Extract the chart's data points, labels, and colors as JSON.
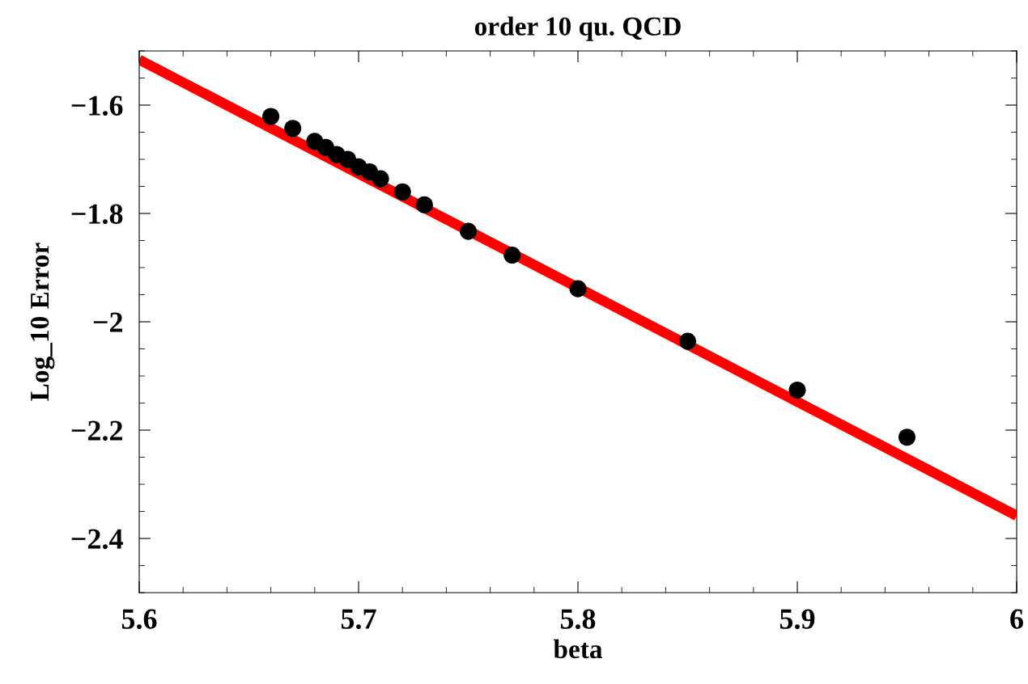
{
  "chart_data": {
    "type": "scatter",
    "title": "order 10 qu. QCD",
    "xlabel": "beta",
    "ylabel": "Log_10 Error",
    "xlim": [
      5.6,
      6.0
    ],
    "ylim": [
      -2.5,
      -1.5
    ],
    "xticks": [
      5.6,
      5.7,
      5.8,
      5.9,
      {
        "value": 6.0,
        "label": "6"
      }
    ],
    "yticks": [
      {
        "value": -2.4,
        "label": "−2.4"
      },
      {
        "value": -2.2,
        "label": "−2.2"
      },
      {
        "value": -2.0,
        "label": "−2"
      },
      {
        "value": -1.8,
        "label": "−1.8"
      },
      {
        "value": -1.6,
        "label": "−1.6"
      }
    ],
    "grid": false,
    "series": [
      {
        "marker": "circle",
        "color": "#000000",
        "x": [
          5.66,
          5.67,
          5.68,
          5.685,
          5.69,
          5.695,
          5.7,
          5.705,
          5.71,
          5.72,
          5.73,
          5.75,
          5.77,
          5.8,
          5.85,
          5.9,
          5.95
        ],
        "values": [
          -1.621,
          -1.643,
          -1.667,
          -1.678,
          -1.691,
          -1.7,
          -1.714,
          -1.723,
          -1.736,
          -1.76,
          -1.784,
          -1.833,
          -1.877,
          -1.939,
          -2.036,
          -2.126,
          -2.213
        ]
      },
      {
        "type": "line",
        "marker": "none",
        "color": "#ff0000",
        "line_style": "solid",
        "x": [
          5.6,
          6.0
        ],
        "values": [
          -1.516,
          -2.358
        ]
      }
    ]
  }
}
